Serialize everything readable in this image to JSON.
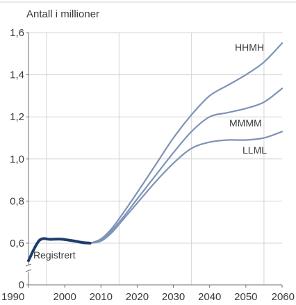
{
  "chart_data": {
    "type": "line",
    "title": "Antall i millioner",
    "xlim": [
      1990,
      2060
    ],
    "ylim": [
      0,
      1.6
    ],
    "axis_break": [
      0.05,
      0.55
    ],
    "x_ticks": [
      1990,
      2000,
      2010,
      2020,
      2030,
      2040,
      2050,
      2060
    ],
    "x_tick_labels": [
      "1990",
      "2000",
      "2010",
      "2020",
      "2030",
      "2040",
      "2050",
      "2060"
    ],
    "y_ticks": [
      0,
      0.6,
      0.8,
      1.0,
      1.2,
      1.4,
      1.6
    ],
    "y_tick_labels": [
      "0",
      "0,6",
      "0,8",
      "1,0",
      "1,2",
      "1,4",
      "1,6"
    ],
    "vertical_gridlines": [
      1995,
      2015,
      2035,
      2055
    ],
    "colors": {
      "registered": "#1f3d6b",
      "projection": "#7e93b8",
      "grid": "#d4d4d4",
      "axis": "#6f6f6f"
    },
    "series": [
      {
        "name": "Registrert",
        "x": [
          1990,
          1993,
          1996,
          1999,
          2002,
          2005,
          2007
        ],
        "y": [
          0.597,
          0.613,
          0.618,
          0.619,
          0.612,
          0.603,
          0.6
        ]
      },
      {
        "name": "HHMH",
        "x": [
          2007,
          2010,
          2013,
          2016,
          2020,
          2025,
          2030,
          2035,
          2040,
          2045,
          2050,
          2055,
          2060
        ],
        "y": [
          0.6,
          0.62,
          0.67,
          0.74,
          0.84,
          0.97,
          1.1,
          1.21,
          1.3,
          1.35,
          1.4,
          1.46,
          1.55
        ]
      },
      {
        "name": "MMMM",
        "x": [
          2007,
          2010,
          2013,
          2016,
          2020,
          2025,
          2030,
          2035,
          2040,
          2045,
          2050,
          2055,
          2060
        ],
        "y": [
          0.6,
          0.615,
          0.66,
          0.72,
          0.81,
          0.92,
          1.03,
          1.13,
          1.2,
          1.22,
          1.24,
          1.27,
          1.335
        ]
      },
      {
        "name": "LLML",
        "x": [
          2007,
          2010,
          2013,
          2016,
          2020,
          2025,
          2030,
          2035,
          2040,
          2045,
          2050,
          2055,
          2060
        ],
        "y": [
          0.6,
          0.61,
          0.65,
          0.71,
          0.79,
          0.89,
          0.98,
          1.05,
          1.08,
          1.09,
          1.09,
          1.1,
          1.13
        ]
      }
    ]
  }
}
